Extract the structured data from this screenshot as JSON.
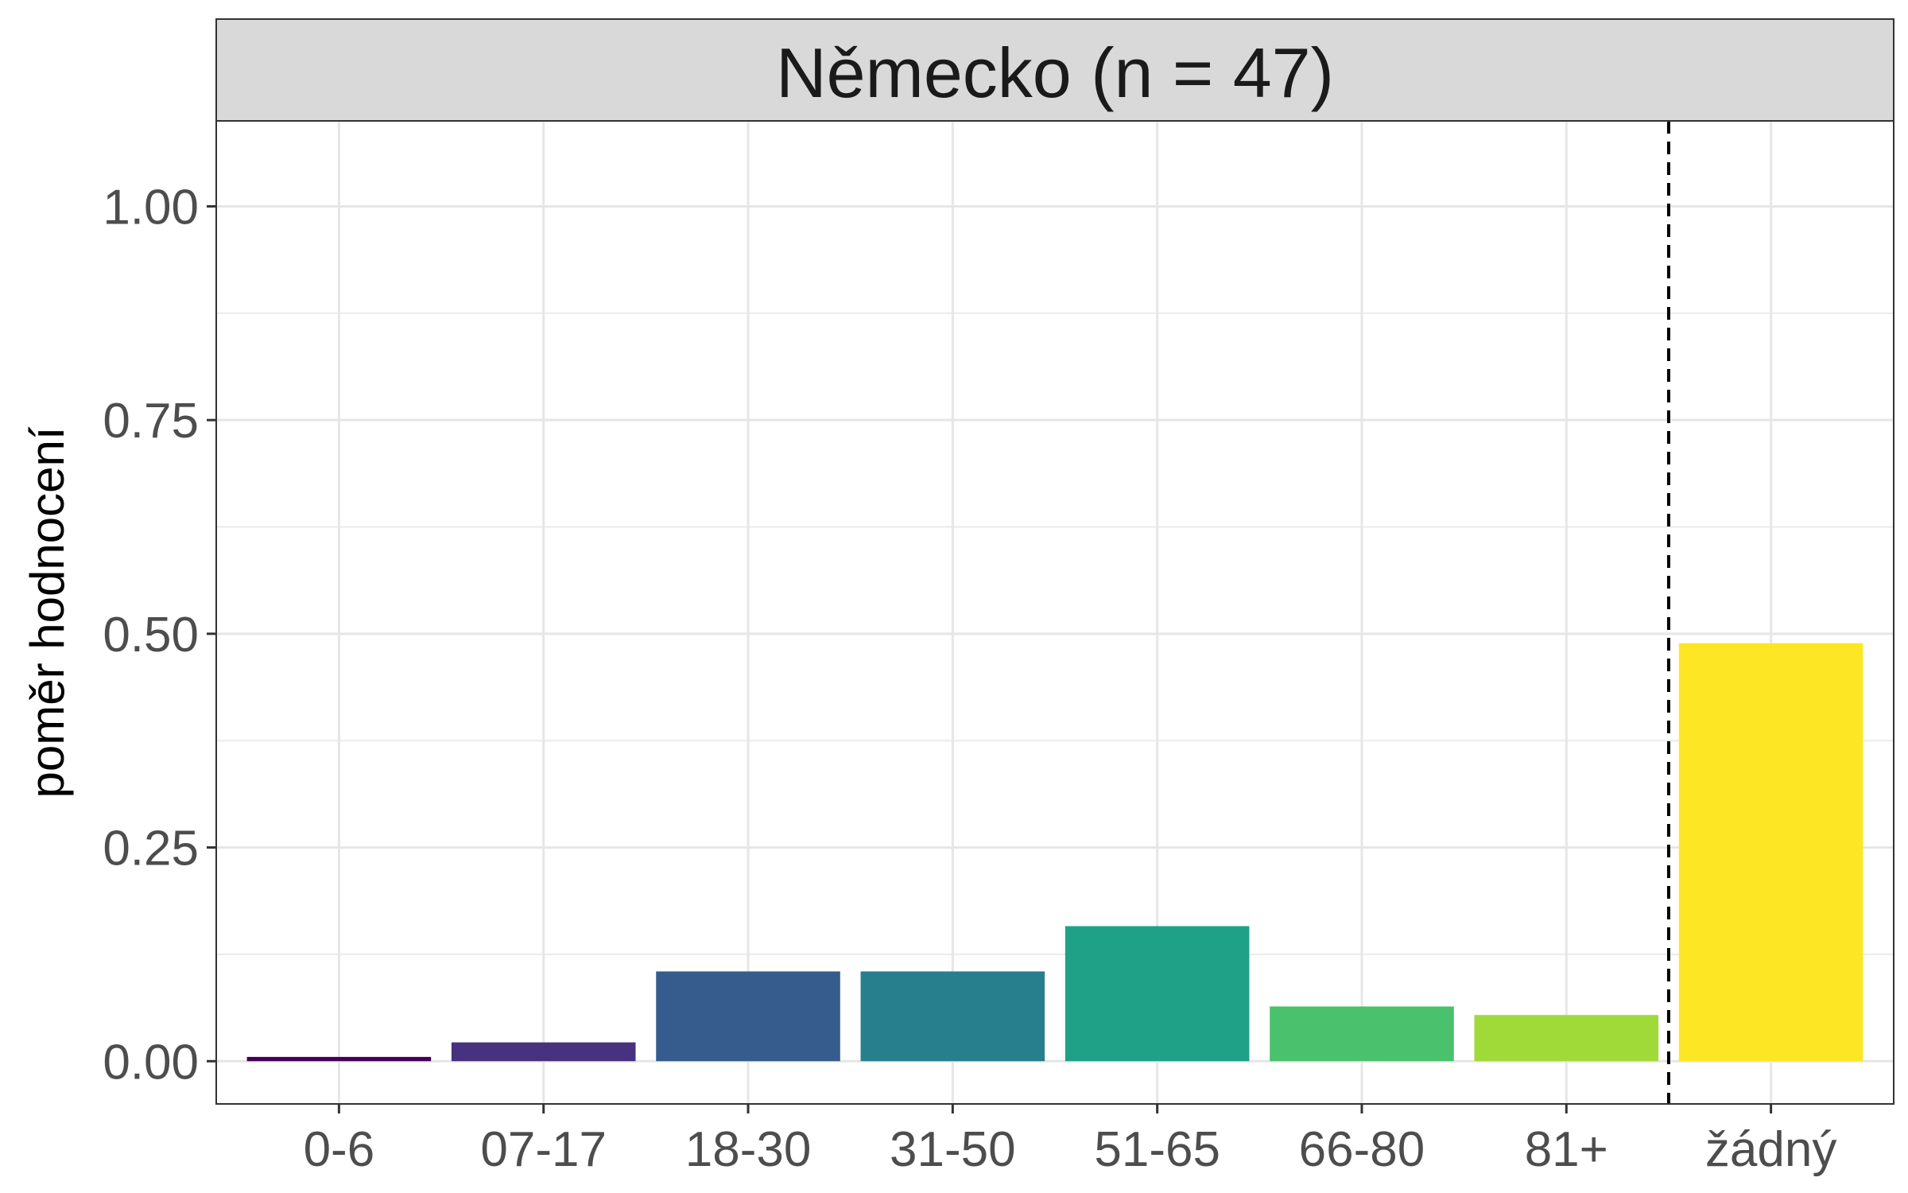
{
  "chart_data": {
    "type": "bar",
    "title": "Německo (n = 47)",
    "xlabel": "",
    "ylabel": "poměr hodnocení",
    "categories": [
      "0-6",
      "07-17",
      "18-30",
      "31-50",
      "51-65",
      "66-80",
      "81+",
      "žádný"
    ],
    "values": [
      0.005,
      0.022,
      0.105,
      0.105,
      0.158,
      0.064,
      0.054,
      0.489
    ],
    "colors": [
      "#440154",
      "#46327E",
      "#365C8D",
      "#277F8E",
      "#1FA187",
      "#4AC16D",
      "#A0DA39",
      "#FDE725"
    ],
    "ylim": [
      -0.05,
      1.1
    ],
    "yticks": [
      0.0,
      0.25,
      0.5,
      0.75,
      1.0
    ],
    "ytick_labels": [
      "0.00",
      "0.25",
      "0.50",
      "0.75",
      "1.00"
    ],
    "grid": true,
    "separator_line": {
      "style": "dashed",
      "between": [
        "81+",
        "žádný"
      ]
    },
    "legend": "none"
  }
}
